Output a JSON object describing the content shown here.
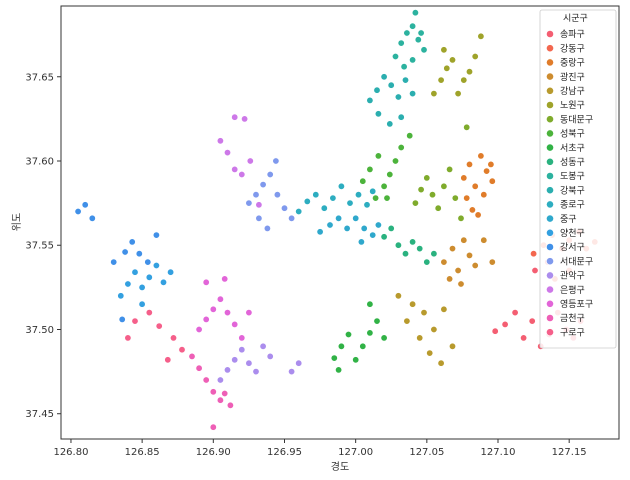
{
  "chart_data": {
    "type": "scatter",
    "title": "",
    "xlabel": "경도",
    "ylabel": "위도",
    "xlim": [
      126.793,
      127.185
    ],
    "ylim": [
      37.435,
      37.692
    ],
    "xticks": [
      126.8,
      126.85,
      126.9,
      126.95,
      127.0,
      127.05,
      127.1,
      127.15
    ],
    "xtick_labels": [
      "126.80",
      "126.85",
      "126.90",
      "126.95",
      "127.00",
      "127.05",
      "127.10",
      "127.15"
    ],
    "yticks": [
      37.45,
      37.5,
      37.55,
      37.6,
      37.65
    ],
    "ytick_labels": [
      "37.45",
      "37.50",
      "37.55",
      "37.60",
      "37.65"
    ],
    "grid": false,
    "legend": {
      "title": "시군구",
      "position": "top-right"
    },
    "series": [
      {
        "name": "송파구",
        "color": "#f45e72",
        "points": [
          [
            127.098,
            37.499
          ],
          [
            127.105,
            37.503
          ],
          [
            127.112,
            37.51
          ],
          [
            127.118,
            37.495
          ],
          [
            127.124,
            37.505
          ],
          [
            127.13,
            37.49
          ],
          [
            127.136,
            37.497
          ],
          [
            127.142,
            37.51
          ],
          [
            127.148,
            37.5
          ],
          [
            127.153,
            37.495
          ],
          [
            127.158,
            37.505
          ],
          [
            127.126,
            37.535
          ],
          [
            127.135,
            37.54
          ]
        ]
      },
      {
        "name": "강동구",
        "color": "#f3674f",
        "points": [
          [
            127.125,
            37.545
          ],
          [
            127.132,
            37.55
          ],
          [
            127.138,
            37.556
          ],
          [
            127.145,
            37.548
          ],
          [
            127.15,
            37.553
          ],
          [
            127.157,
            37.558
          ],
          [
            127.162,
            37.548
          ],
          [
            127.168,
            37.552
          ],
          [
            127.14,
            37.53
          ],
          [
            127.15,
            37.535
          ]
        ]
      },
      {
        "name": "중랑구",
        "color": "#e07c2a",
        "points": [
          [
            127.076,
            37.59
          ],
          [
            127.08,
            37.598
          ],
          [
            127.084,
            37.585
          ],
          [
            127.088,
            37.603
          ],
          [
            127.092,
            37.594
          ],
          [
            127.096,
            37.588
          ],
          [
            127.078,
            37.578
          ],
          [
            127.082,
            37.571
          ],
          [
            127.086,
            37.568
          ],
          [
            127.09,
            37.58
          ],
          [
            127.095,
            37.598
          ]
        ]
      },
      {
        "name": "광진구",
        "color": "#cd8c2f",
        "points": [
          [
            127.062,
            37.54
          ],
          [
            127.068,
            37.548
          ],
          [
            127.072,
            37.535
          ],
          [
            127.076,
            37.553
          ],
          [
            127.08,
            37.544
          ],
          [
            127.084,
            37.538
          ],
          [
            127.09,
            37.553
          ],
          [
            127.096,
            37.54
          ],
          [
            127.066,
            37.53
          ],
          [
            127.074,
            37.527
          ]
        ]
      },
      {
        "name": "강남구",
        "color": "#b89a2d",
        "points": [
          [
            127.03,
            37.52
          ],
          [
            127.04,
            37.515
          ],
          [
            127.048,
            37.51
          ],
          [
            127.055,
            37.5
          ],
          [
            127.062,
            37.512
          ],
          [
            127.045,
            37.495
          ],
          [
            127.052,
            37.486
          ],
          [
            127.06,
            37.48
          ],
          [
            127.068,
            37.49
          ],
          [
            127.036,
            37.505
          ]
        ]
      },
      {
        "name": "노원구",
        "color": "#9fa32a",
        "points": [
          [
            127.055,
            37.64
          ],
          [
            127.06,
            37.648
          ],
          [
            127.064,
            37.655
          ],
          [
            127.068,
            37.66
          ],
          [
            127.072,
            37.64
          ],
          [
            127.076,
            37.648
          ],
          [
            127.08,
            37.653
          ],
          [
            127.084,
            37.662
          ],
          [
            127.088,
            37.674
          ],
          [
            127.062,
            37.666
          ]
        ]
      },
      {
        "name": "동대문구",
        "color": "#7fab2c",
        "points": [
          [
            127.042,
            37.575
          ],
          [
            127.046,
            37.583
          ],
          [
            127.05,
            37.59
          ],
          [
            127.054,
            37.58
          ],
          [
            127.058,
            37.572
          ],
          [
            127.062,
            37.585
          ],
          [
            127.066,
            37.595
          ],
          [
            127.07,
            37.578
          ],
          [
            127.074,
            37.566
          ],
          [
            127.078,
            37.62
          ]
        ]
      },
      {
        "name": "성북구",
        "color": "#4cb33b",
        "points": [
          [
            127.005,
            37.588
          ],
          [
            127.01,
            37.595
          ],
          [
            127.016,
            37.603
          ],
          [
            127.02,
            37.585
          ],
          [
            127.024,
            37.592
          ],
          [
            127.028,
            37.6
          ],
          [
            127.032,
            37.608
          ],
          [
            127.038,
            37.615
          ],
          [
            127.014,
            37.578
          ],
          [
            127.022,
            37.578
          ]
        ]
      },
      {
        "name": "서초구",
        "color": "#31b246",
        "points": [
          [
            126.985,
            37.483
          ],
          [
            126.99,
            37.49
          ],
          [
            126.995,
            37.497
          ],
          [
            127.0,
            37.482
          ],
          [
            127.005,
            37.49
          ],
          [
            127.01,
            37.498
          ],
          [
            127.015,
            37.505
          ],
          [
            127.02,
            37.495
          ],
          [
            127.01,
            37.515
          ],
          [
            126.988,
            37.476
          ]
        ]
      },
      {
        "name": "성동구",
        "color": "#2ab27f",
        "points": [
          [
            127.02,
            37.555
          ],
          [
            127.025,
            37.56
          ],
          [
            127.03,
            37.55
          ],
          [
            127.035,
            37.545
          ],
          [
            127.04,
            37.552
          ],
          [
            127.045,
            37.548
          ],
          [
            127.05,
            37.54
          ],
          [
            127.055,
            37.545
          ]
        ]
      },
      {
        "name": "도봉구",
        "color": "#2cb29f",
        "points": [
          [
            127.028,
            37.662
          ],
          [
            127.032,
            37.67
          ],
          [
            127.036,
            37.676
          ],
          [
            127.04,
            37.68
          ],
          [
            127.044,
            37.672
          ],
          [
            127.048,
            37.666
          ],
          [
            127.034,
            37.656
          ],
          [
            127.04,
            37.66
          ],
          [
            127.046,
            37.676
          ],
          [
            127.042,
            37.688
          ]
        ]
      },
      {
        "name": "강북구",
        "color": "#2baeaf",
        "points": [
          [
            127.01,
            37.636
          ],
          [
            127.015,
            37.642
          ],
          [
            127.02,
            37.65
          ],
          [
            127.025,
            37.645
          ],
          [
            127.03,
            37.638
          ],
          [
            127.035,
            37.648
          ],
          [
            127.04,
            37.64
          ],
          [
            127.016,
            37.628
          ],
          [
            127.024,
            37.622
          ],
          [
            127.032,
            37.626
          ]
        ]
      },
      {
        "name": "종로구",
        "color": "#2dadc0",
        "points": [
          [
            126.96,
            37.57
          ],
          [
            126.966,
            37.576
          ],
          [
            126.972,
            37.58
          ],
          [
            126.978,
            37.572
          ],
          [
            126.984,
            37.578
          ],
          [
            126.99,
            37.585
          ],
          [
            126.996,
            37.575
          ],
          [
            127.002,
            37.58
          ],
          [
            127.008,
            37.574
          ],
          [
            127.012,
            37.582
          ]
        ]
      },
      {
        "name": "중구",
        "color": "#2fa8cc",
        "points": [
          [
            126.975,
            37.558
          ],
          [
            126.982,
            37.562
          ],
          [
            126.988,
            37.566
          ],
          [
            126.994,
            37.56
          ],
          [
            127.0,
            37.566
          ],
          [
            127.006,
            37.56
          ],
          [
            127.012,
            37.556
          ],
          [
            127.016,
            37.562
          ],
          [
            127.004,
            37.552
          ]
        ]
      },
      {
        "name": "양천구",
        "color": "#33a0e0",
        "points": [
          [
            126.835,
            37.52
          ],
          [
            126.84,
            37.527
          ],
          [
            126.845,
            37.534
          ],
          [
            126.85,
            37.525
          ],
          [
            126.855,
            37.531
          ],
          [
            126.86,
            37.538
          ],
          [
            126.865,
            37.528
          ],
          [
            126.87,
            37.534
          ],
          [
            126.85,
            37.515
          ]
        ]
      },
      {
        "name": "강서구",
        "color": "#4090e8",
        "points": [
          [
            126.805,
            37.57
          ],
          [
            126.81,
            37.574
          ],
          [
            126.815,
            37.566
          ],
          [
            126.83,
            37.54
          ],
          [
            126.838,
            37.546
          ],
          [
            126.843,
            37.552
          ],
          [
            126.848,
            37.545
          ],
          [
            126.854,
            37.54
          ],
          [
            126.86,
            37.556
          ],
          [
            126.836,
            37.506
          ]
        ]
      },
      {
        "name": "서대문구",
        "color": "#7f99ed",
        "points": [
          [
            126.925,
            37.575
          ],
          [
            126.93,
            37.58
          ],
          [
            126.935,
            37.586
          ],
          [
            126.94,
            37.592
          ],
          [
            126.945,
            37.58
          ],
          [
            126.95,
            37.572
          ],
          [
            126.955,
            37.566
          ],
          [
            126.932,
            37.566
          ],
          [
            126.938,
            37.56
          ],
          [
            126.944,
            37.6
          ]
        ]
      },
      {
        "name": "관악구",
        "color": "#ab8ded",
        "points": [
          [
            126.905,
            37.47
          ],
          [
            126.91,
            37.476
          ],
          [
            126.915,
            37.482
          ],
          [
            126.92,
            37.488
          ],
          [
            126.925,
            37.48
          ],
          [
            126.93,
            37.475
          ],
          [
            126.935,
            37.49
          ],
          [
            126.94,
            37.484
          ],
          [
            126.955,
            37.475
          ],
          [
            126.96,
            37.48
          ]
        ]
      },
      {
        "name": "은평구",
        "color": "#cd78e8",
        "points": [
          [
            126.905,
            37.612
          ],
          [
            126.91,
            37.605
          ],
          [
            126.915,
            37.626
          ],
          [
            126.92,
            37.592
          ],
          [
            126.922,
            37.625
          ],
          [
            126.915,
            37.595
          ],
          [
            126.926,
            37.6
          ],
          [
            126.932,
            37.574
          ]
        ]
      },
      {
        "name": "영등포구",
        "color": "#e265d8",
        "points": [
          [
            126.89,
            37.5
          ],
          [
            126.895,
            37.506
          ],
          [
            126.9,
            37.512
          ],
          [
            126.905,
            37.518
          ],
          [
            126.91,
            37.51
          ],
          [
            126.915,
            37.503
          ],
          [
            126.92,
            37.495
          ],
          [
            126.925,
            37.51
          ],
          [
            126.895,
            37.528
          ],
          [
            126.908,
            37.53
          ]
        ]
      },
      {
        "name": "금천구",
        "color": "#ee5fb6",
        "points": [
          [
            126.885,
            37.484
          ],
          [
            126.89,
            37.477
          ],
          [
            126.895,
            37.47
          ],
          [
            126.9,
            37.463
          ],
          [
            126.905,
            37.458
          ],
          [
            126.9,
            37.442
          ],
          [
            126.908,
            37.462
          ],
          [
            126.912,
            37.455
          ]
        ]
      },
      {
        "name": "구로구",
        "color": "#f55f8a",
        "points": [
          [
            126.845,
            37.505
          ],
          [
            126.84,
            37.495
          ],
          [
            126.862,
            37.502
          ],
          [
            126.855,
            37.51
          ],
          [
            126.872,
            37.495
          ],
          [
            126.878,
            37.488
          ],
          [
            126.868,
            37.482
          ]
        ]
      }
    ]
  }
}
